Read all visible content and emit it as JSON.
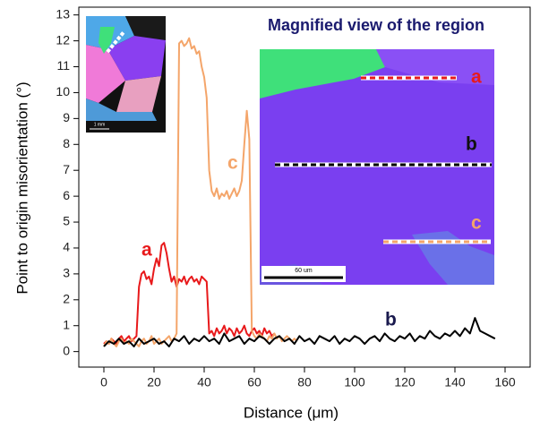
{
  "chart_data": {
    "type": "line",
    "x_label": "Distance (μm)",
    "y_label": "Point to origin misorientation (°)",
    "xlim": [
      -10,
      170
    ],
    "ylim": [
      -0.6,
      13.3
    ],
    "xticks": [
      0,
      20,
      40,
      60,
      80,
      100,
      120,
      140,
      160
    ],
    "yticks": [
      0,
      1,
      2,
      3,
      4,
      5,
      6,
      7,
      8,
      9,
      10,
      11,
      12,
      13
    ],
    "annotations": [
      "a",
      "b",
      "c"
    ],
    "inset": {
      "title": "Magnified view of the region",
      "labels": [
        "a",
        "b",
        "c"
      ],
      "scale_bar": "60 um",
      "overview_scale_bar": "1 mm"
    },
    "series": [
      {
        "name": "a",
        "color": "#e8191b",
        "x": [
          0,
          1,
          2,
          3,
          4,
          5,
          6,
          7,
          8,
          9,
          10,
          11,
          12,
          13,
          14,
          15,
          16,
          17,
          18,
          19,
          20,
          21,
          22,
          23,
          24,
          25,
          26,
          27,
          28,
          29,
          30,
          31,
          32,
          33,
          34,
          35,
          36,
          37,
          38,
          39,
          40,
          41,
          42,
          43,
          44,
          45,
          46,
          47,
          48,
          49,
          50,
          51,
          52,
          53,
          54,
          55,
          56,
          57,
          58,
          59,
          60,
          61,
          62,
          63,
          64,
          65,
          66,
          67,
          68
        ],
        "values": [
          0.3,
          0.4,
          0.3,
          0.5,
          0.4,
          0.3,
          0.5,
          0.6,
          0.4,
          0.5,
          0.6,
          0.4,
          0.5,
          0.6,
          2.5,
          3.0,
          3.1,
          2.8,
          2.9,
          2.6,
          3.2,
          3.6,
          3.3,
          4.1,
          4.2,
          3.8,
          3.2,
          2.7,
          2.9,
          2.5,
          2.8,
          2.7,
          2.9,
          2.6,
          2.8,
          2.9,
          2.7,
          2.8,
          2.6,
          2.9,
          2.8,
          2.7,
          0.7,
          0.8,
          0.6,
          0.9,
          0.7,
          0.8,
          1.0,
          0.7,
          0.9,
          0.8,
          0.6,
          0.9,
          0.7,
          0.8,
          1.0,
          0.7,
          0.6,
          0.8,
          0.9,
          0.7,
          0.8,
          0.6,
          0.9,
          0.7,
          0.8,
          0.6,
          0.7
        ]
      },
      {
        "name": "c",
        "color": "#f4a56a",
        "x": [
          0,
          1,
          2,
          3,
          4,
          5,
          6,
          7,
          8,
          9,
          10,
          11,
          12,
          13,
          14,
          15,
          16,
          17,
          18,
          19,
          20,
          21,
          22,
          23,
          24,
          25,
          26,
          27,
          28,
          29,
          30,
          31,
          32,
          33,
          34,
          35,
          36,
          37,
          38,
          39,
          40,
          41,
          42,
          43,
          44,
          45,
          46,
          47,
          48,
          49,
          50,
          51,
          52,
          53,
          54,
          55,
          56,
          57,
          58,
          59,
          60,
          61,
          62,
          63,
          64,
          65,
          66,
          67,
          68,
          69,
          70,
          71,
          72,
          73,
          74,
          75,
          76,
          77
        ],
        "values": [
          0.2,
          0.4,
          0.3,
          0.5,
          0.3,
          0.2,
          0.4,
          0.5,
          0.3,
          0.4,
          0.3,
          0.5,
          0.4,
          0.3,
          0.2,
          0.4,
          0.5,
          0.3,
          0.4,
          0.6,
          0.3,
          0.4,
          0.5,
          0.3,
          0.4,
          0.5,
          0.6,
          0.4,
          0.5,
          0.7,
          11.9,
          12.0,
          11.8,
          11.9,
          12.1,
          11.7,
          11.8,
          11.5,
          11.6,
          11.0,
          10.6,
          9.8,
          7.0,
          6.2,
          6.0,
          6.3,
          5.9,
          6.1,
          6.0,
          6.2,
          5.9,
          6.1,
          6.3,
          6.0,
          6.2,
          6.6,
          8.0,
          9.3,
          8.2,
          0.8,
          0.6,
          0.5,
          0.7,
          0.6,
          0.5,
          0.4,
          0.6,
          0.5,
          0.7,
          0.5,
          0.6,
          0.4,
          0.5,
          0.6,
          0.5,
          0.4,
          0.5,
          0.4
        ]
      },
      {
        "name": "b",
        "color": "#000000",
        "x": [
          0,
          2,
          4,
          6,
          8,
          10,
          12,
          14,
          16,
          18,
          20,
          22,
          24,
          26,
          28,
          30,
          32,
          34,
          36,
          38,
          40,
          42,
          44,
          46,
          48,
          50,
          52,
          54,
          56,
          58,
          60,
          62,
          64,
          66,
          68,
          70,
          72,
          74,
          76,
          78,
          80,
          82,
          84,
          86,
          88,
          90,
          92,
          94,
          96,
          98,
          100,
          102,
          104,
          106,
          108,
          110,
          112,
          114,
          116,
          118,
          120,
          122,
          124,
          126,
          128,
          130,
          132,
          134,
          136,
          138,
          140,
          142,
          144,
          146,
          148,
          150,
          152,
          154,
          156
        ],
        "values": [
          0.2,
          0.4,
          0.3,
          0.5,
          0.3,
          0.4,
          0.2,
          0.5,
          0.3,
          0.4,
          0.5,
          0.3,
          0.4,
          0.2,
          0.5,
          0.4,
          0.6,
          0.3,
          0.5,
          0.4,
          0.6,
          0.4,
          0.5,
          0.3,
          0.7,
          0.4,
          0.5,
          0.6,
          0.3,
          0.5,
          0.4,
          0.6,
          0.5,
          0.3,
          0.5,
          0.6,
          0.4,
          0.5,
          0.3,
          0.6,
          0.4,
          0.5,
          0.3,
          0.6,
          0.5,
          0.4,
          0.6,
          0.3,
          0.5,
          0.4,
          0.6,
          0.5,
          0.3,
          0.5,
          0.6,
          0.4,
          0.7,
          0.5,
          0.4,
          0.6,
          0.5,
          0.7,
          0.4,
          0.6,
          0.5,
          0.8,
          0.6,
          0.5,
          0.7,
          0.6,
          0.8,
          0.6,
          0.9,
          0.7,
          1.3,
          0.8,
          0.7,
          0.6,
          0.5
        ]
      }
    ]
  }
}
